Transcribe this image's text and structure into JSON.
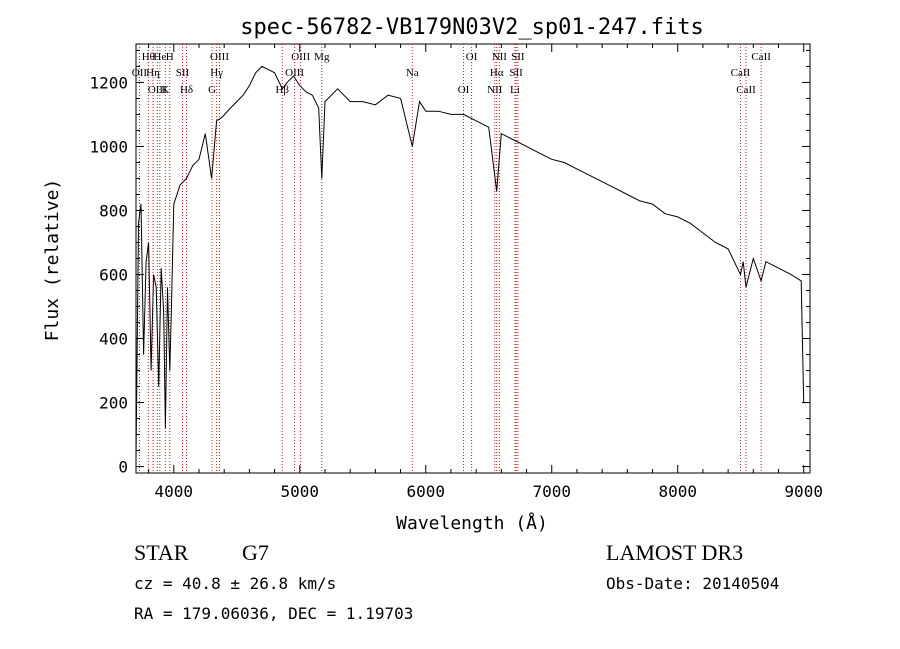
{
  "chart_data": {
    "type": "line",
    "title": "spec-56782-VB179N03V2_sp01-247.fits",
    "xlabel": "Wavelength (Å)",
    "ylabel": "Flux (relative)",
    "xlim": [
      3700,
      9050
    ],
    "ylim": [
      -20,
      1320
    ],
    "xticks": [
      4000,
      5000,
      6000,
      7000,
      8000,
      9000
    ],
    "yticks": [
      0,
      200,
      400,
      600,
      800,
      1000,
      1200
    ],
    "line_color": "#000000",
    "marker_color": "#b22222",
    "series": [
      {
        "name": "flux",
        "x": [
          3700,
          3720,
          3740,
          3760,
          3780,
          3800,
          3820,
          3840,
          3860,
          3880,
          3900,
          3920,
          3933,
          3950,
          3968,
          3980,
          4000,
          4050,
          4101,
          4150,
          4200,
          4250,
          4300,
          4340,
          4380,
          4450,
          4500,
          4550,
          4600,
          4650,
          4700,
          4750,
          4800,
          4861,
          4900,
          4950,
          5000,
          5050,
          5100,
          5150,
          5175,
          5200,
          5300,
          5400,
          5500,
          5600,
          5700,
          5800,
          5893,
          5950,
          6000,
          6100,
          6200,
          6300,
          6400,
          6500,
          6563,
          6600,
          6700,
          6800,
          6900,
          7000,
          7100,
          7200,
          7300,
          7400,
          7500,
          7600,
          7700,
          7800,
          7900,
          8000,
          8100,
          8200,
          8300,
          8400,
          8498,
          8520,
          8542,
          8600,
          8662,
          8700,
          8800,
          8900,
          8980,
          9000
        ],
        "y": [
          20,
          760,
          820,
          350,
          640,
          700,
          300,
          600,
          560,
          250,
          620,
          480,
          120,
          560,
          300,
          480,
          820,
          880,
          900,
          940,
          960,
          1040,
          900,
          1080,
          1090,
          1120,
          1140,
          1160,
          1190,
          1230,
          1250,
          1240,
          1230,
          1180,
          1200,
          1220,
          1190,
          1170,
          1160,
          1120,
          900,
          1140,
          1180,
          1140,
          1140,
          1130,
          1160,
          1150,
          1000,
          1140,
          1110,
          1110,
          1100,
          1100,
          1080,
          1060,
          860,
          1040,
          1020,
          1000,
          980,
          960,
          950,
          930,
          910,
          890,
          870,
          850,
          830,
          820,
          790,
          780,
          760,
          730,
          700,
          680,
          600,
          640,
          560,
          650,
          580,
          640,
          620,
          600,
          580,
          200
        ]
      }
    ],
    "lines": [
      {
        "label": "Hθ",
        "x": 3798
      },
      {
        "label": "OII",
        "x": 3727
      },
      {
        "label": "OIII",
        "x": 3869
      },
      {
        "label": "He",
        "x": 3889
      },
      {
        "label": "Hη",
        "x": 3835
      },
      {
        "label": "K",
        "x": 3933
      },
      {
        "label": "H",
        "x": 3968
      },
      {
        "label": "SII",
        "x": 4069
      },
      {
        "label": "Hδ",
        "x": 4101
      },
      {
        "label": "OIII",
        "x": 4363
      },
      {
        "label": "Hγ",
        "x": 4340
      },
      {
        "label": "G",
        "x": 4304
      },
      {
        "label": "OIII",
        "x": 5007
      },
      {
        "label": "OIII",
        "x": 4959
      },
      {
        "label": "Hβ",
        "x": 4861
      },
      {
        "label": "Mg",
        "x": 5175
      },
      {
        "label": "Na",
        "x": 5893
      },
      {
        "label": "OI",
        "x": 6300
      },
      {
        "label": "OI",
        "x": 6364
      },
      {
        "label": "Hα",
        "x": 6563
      },
      {
        "label": "NII",
        "x": 6548
      },
      {
        "label": "NII",
        "x": 6584
      },
      {
        "label": "SII",
        "x": 6717
      },
      {
        "label": "Li",
        "x": 6708
      },
      {
        "label": "SII",
        "x": 6731
      },
      {
        "label": "CaII",
        "x": 8498
      },
      {
        "label": "CaII",
        "x": 8542
      },
      {
        "label": "CaII",
        "x": 8662
      }
    ]
  },
  "info": {
    "object_class": "STAR",
    "subclass": "G7",
    "survey": "LAMOST DR3",
    "redshift": "cz = 40.8 ± 26.8 km/s",
    "obs_date": "Obs-Date: 20140504",
    "coords": "RA = 179.06036, DEC =    1.19703"
  }
}
